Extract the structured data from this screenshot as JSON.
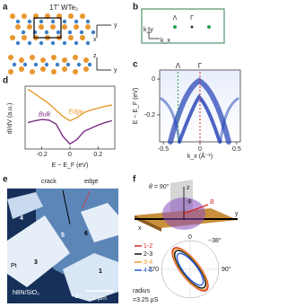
{
  "panels": {
    "a": {
      "label": "a",
      "title": "1T′ WTe₂",
      "top_axes": [
        "y",
        "x"
      ],
      "side_axes": [
        "z",
        "y"
      ]
    },
    "b": {
      "label": "b",
      "points": [
        "Λ",
        "Γ"
      ],
      "axes": [
        "k_y",
        "k_x"
      ]
    },
    "c": {
      "label": "c",
      "xlabel": "k_x (Å⁻¹)",
      "ylabel": "E − E_F (eV)",
      "xlim": [
        -0.55,
        0.55
      ],
      "ylim": [
        -0.35,
        0.05
      ],
      "xticks": [
        -0.5,
        0,
        0.5
      ],
      "yticks": [
        0,
        -0.2
      ],
      "lines": [
        {
          "label": "Λ",
          "x": -0.3,
          "color": "#2e9e4f"
        },
        {
          "label": "Γ",
          "x": 0,
          "color": "#d62828"
        }
      ]
    },
    "d": {
      "label": "d",
      "type": "line",
      "xlabel": "E − E_F (eV)",
      "ylabel": "dI/dV (a.u.)",
      "xlim": [
        -0.32,
        0.32
      ],
      "ylim": [
        0,
        1
      ],
      "xticks": [
        -0.2,
        0,
        0.2
      ],
      "x": [
        -0.3,
        -0.25,
        -0.2,
        -0.15,
        -0.1,
        -0.05,
        0,
        0.05,
        0.1,
        0.15,
        0.2,
        0.25,
        0.3
      ],
      "series": [
        {
          "name": "Edge",
          "color": "#e89a2e",
          "values": [
            0.95,
            0.88,
            0.8,
            0.72,
            0.62,
            0.52,
            0.45,
            0.5,
            0.58,
            0.62,
            0.65,
            0.68,
            0.7
          ]
        },
        {
          "name": "Bulk",
          "color": "#7b2a86",
          "values": [
            0.42,
            0.45,
            0.47,
            0.46,
            0.4,
            0.2,
            0.08,
            0.15,
            0.28,
            0.33,
            0.38,
            0.42,
            0.45
          ]
        }
      ]
    },
    "e": {
      "label": "e",
      "annotations": [
        "crack",
        "edge"
      ],
      "contacts": [
        "4",
        "5",
        "6",
        "Pt",
        "3",
        "1",
        "2"
      ],
      "substrate": "hBN/SiO₂",
      "scale": "2 µm"
    },
    "f": {
      "label": "f",
      "theta": "θ = 90°",
      "axes": [
        "z",
        "φ",
        "B",
        "y",
        "x"
      ],
      "angles": [
        "0",
        "−38°",
        "270",
        "90°"
      ],
      "rlim": [
        0,
        3.25
      ],
      "rotation": -38,
      "series": [
        {
          "name": "1-2",
          "color": "#d62828",
          "values": [
            3.0
          ]
        },
        {
          "name": "2-3",
          "color": "#111111",
          "values": [
            2.6
          ]
        },
        {
          "name": "3-4",
          "color": "#e89a2e",
          "values": [
            2.85
          ]
        },
        {
          "name": "4-5",
          "color": "#2a5bd7",
          "values": [
            2.2
          ]
        }
      ],
      "radius_label": [
        "radius",
        "=3.25 µS"
      ]
    }
  }
}
